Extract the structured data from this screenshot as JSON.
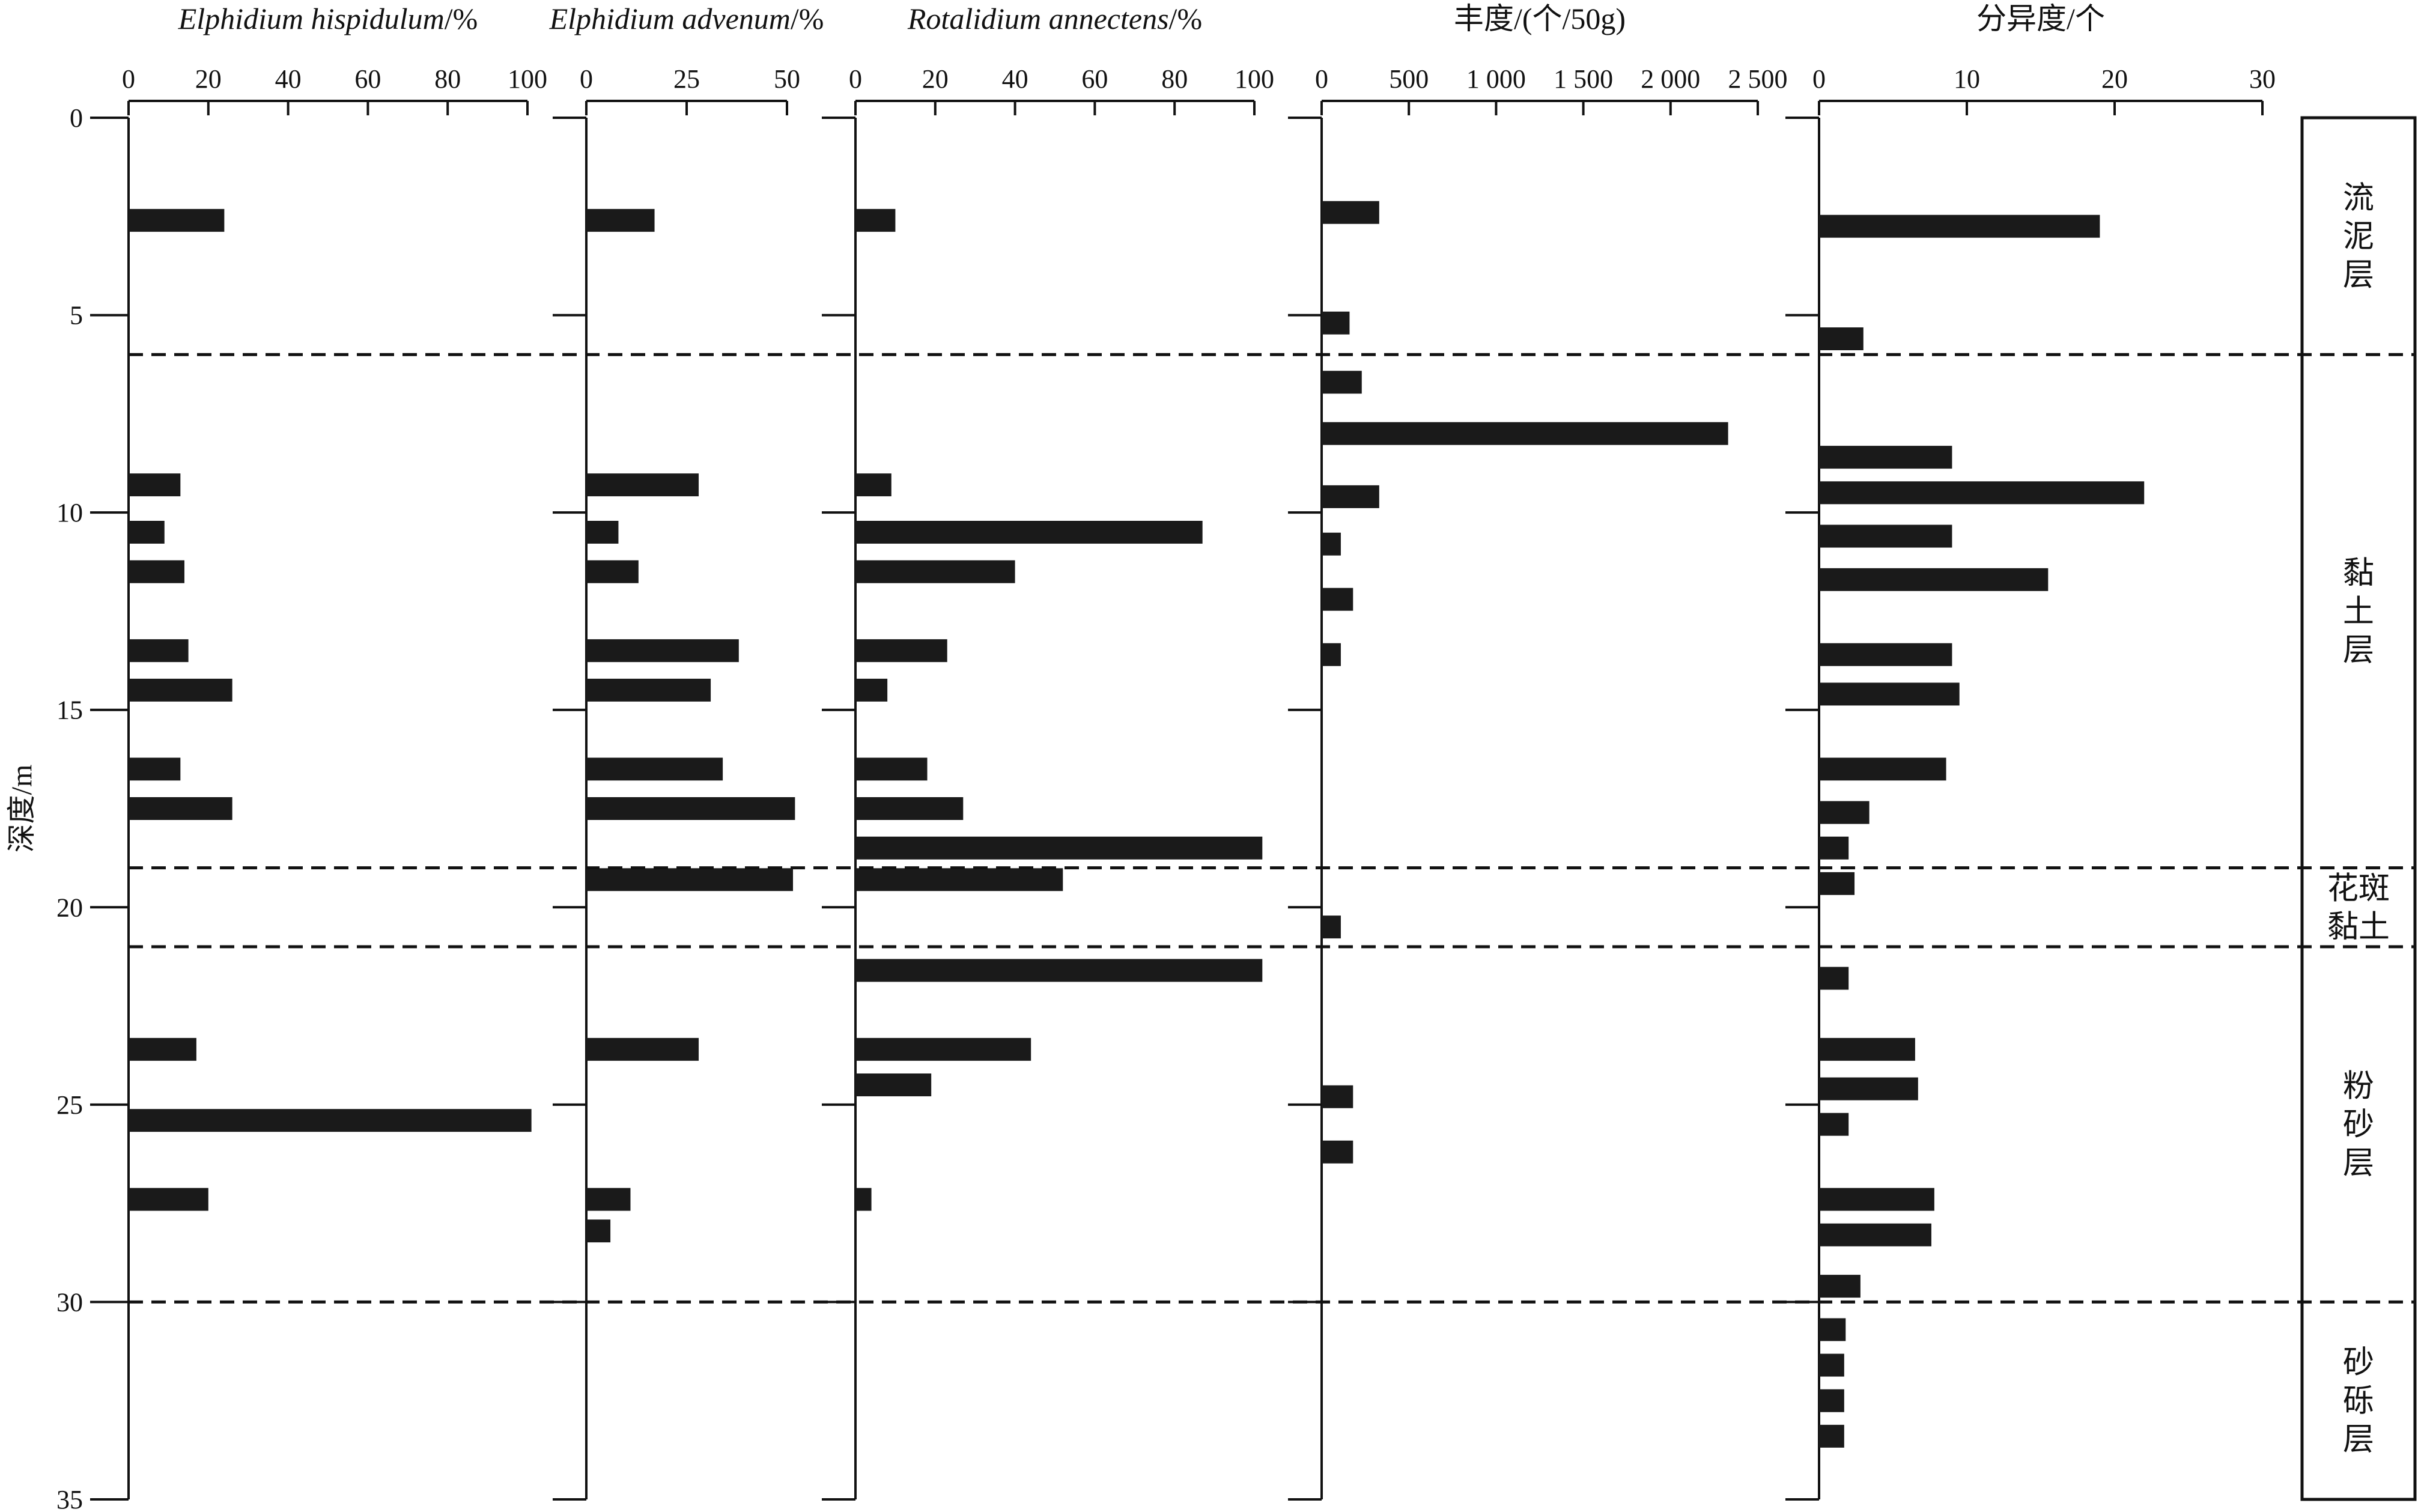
{
  "colors": {
    "bar": "#1a1a1a",
    "axis": "#111111",
    "background": "#ffffff"
  },
  "chart_data": {
    "type": "bar",
    "orientation": "horizontal",
    "ylabel": "深度/m",
    "ylim": [
      0,
      35
    ],
    "yticks": [
      0,
      5,
      10,
      15,
      20,
      25,
      30,
      35
    ],
    "grid": false,
    "boundaries": [
      6,
      19,
      21,
      30
    ],
    "layers": [
      {
        "label": "流泥层",
        "top": 0,
        "bottom": 6
      },
      {
        "label": "黏土层",
        "top": 6,
        "bottom": 19
      },
      {
        "label": "花斑黏土",
        "top": 19,
        "bottom": 21
      },
      {
        "label": "粉砂层",
        "top": 21,
        "bottom": 30
      },
      {
        "label": "砂砾层",
        "top": 30,
        "bottom": 35
      }
    ],
    "series": [
      {
        "name": "Elphidium hispidulum/%",
        "italic_part": "Elphidium hispidulum",
        "suffix": "/%",
        "xlim": [
          0,
          100
        ],
        "xticks": [
          0,
          20,
          40,
          60,
          80,
          100
        ],
        "xtick_labels": [
          "0",
          "20",
          "40",
          "60",
          "80",
          "100"
        ],
        "points": [
          {
            "depth": 2.6,
            "value": 24
          },
          {
            "depth": 9.3,
            "value": 13
          },
          {
            "depth": 10.5,
            "value": 9
          },
          {
            "depth": 11.5,
            "value": 14
          },
          {
            "depth": 13.5,
            "value": 15
          },
          {
            "depth": 14.5,
            "value": 26
          },
          {
            "depth": 16.5,
            "value": 13
          },
          {
            "depth": 17.5,
            "value": 26
          },
          {
            "depth": 23.6,
            "value": 17
          },
          {
            "depth": 25.4,
            "value": 101
          },
          {
            "depth": 27.4,
            "value": 20
          }
        ]
      },
      {
        "name": "Elphidium advenum/%",
        "italic_part": "Elphidium advenum",
        "suffix": "/%",
        "xlim": [
          0,
          50
        ],
        "xticks": [
          0,
          25,
          50
        ],
        "xtick_labels": [
          "0",
          "25",
          "50"
        ],
        "points": [
          {
            "depth": 2.6,
            "value": 17
          },
          {
            "depth": 9.3,
            "value": 28
          },
          {
            "depth": 10.5,
            "value": 8
          },
          {
            "depth": 11.5,
            "value": 13
          },
          {
            "depth": 13.5,
            "value": 38
          },
          {
            "depth": 14.5,
            "value": 31
          },
          {
            "depth": 16.5,
            "value": 34
          },
          {
            "depth": 17.5,
            "value": 52
          },
          {
            "depth": 19.3,
            "value": 51.5
          },
          {
            "depth": 23.6,
            "value": 28
          },
          {
            "depth": 27.4,
            "value": 11
          },
          {
            "depth": 28.2,
            "value": 6
          }
        ]
      },
      {
        "name": "Rotalidium annectens/%",
        "italic_part": "Rotalidium annectens",
        "suffix": "/%",
        "xlim": [
          0,
          100
        ],
        "xticks": [
          0,
          20,
          40,
          60,
          80,
          100
        ],
        "xtick_labels": [
          "0",
          "20",
          "40",
          "60",
          "80",
          "100"
        ],
        "points": [
          {
            "depth": 2.6,
            "value": 10
          },
          {
            "depth": 9.3,
            "value": 9
          },
          {
            "depth": 10.5,
            "value": 87
          },
          {
            "depth": 11.5,
            "value": 40
          },
          {
            "depth": 13.5,
            "value": 23
          },
          {
            "depth": 14.5,
            "value": 8
          },
          {
            "depth": 16.5,
            "value": 18
          },
          {
            "depth": 17.5,
            "value": 27
          },
          {
            "depth": 18.5,
            "value": 102
          },
          {
            "depth": 19.3,
            "value": 52
          },
          {
            "depth": 21.6,
            "value": 102
          },
          {
            "depth": 23.6,
            "value": 44
          },
          {
            "depth": 24.5,
            "value": 19
          },
          {
            "depth": 27.4,
            "value": 4
          }
        ]
      },
      {
        "name": "丰度/(个/50g)",
        "italic_part": "",
        "suffix": "丰度/(个/50g)",
        "xlim": [
          0,
          2500
        ],
        "xticks": [
          0,
          500,
          1000,
          1500,
          2000,
          2500
        ],
        "xtick_labels": [
          "0",
          "500",
          "1 000",
          "1 500",
          "2 000",
          "2 500"
        ],
        "points": [
          {
            "depth": 2.4,
            "value": 330
          },
          {
            "depth": 5.2,
            "value": 160
          },
          {
            "depth": 6.7,
            "value": 230
          },
          {
            "depth": 8.0,
            "value": 2330
          },
          {
            "depth": 9.6,
            "value": 330
          },
          {
            "depth": 10.8,
            "value": 110
          },
          {
            "depth": 12.2,
            "value": 180
          },
          {
            "depth": 13.6,
            "value": 110
          },
          {
            "depth": 20.5,
            "value": 110
          },
          {
            "depth": 24.8,
            "value": 180
          },
          {
            "depth": 26.2,
            "value": 180
          }
        ]
      },
      {
        "name": "分异度/个",
        "italic_part": "",
        "suffix": "分异度/个",
        "xlim": [
          0,
          30
        ],
        "xticks": [
          0,
          10,
          20,
          30
        ],
        "xtick_labels": [
          "0",
          "10",
          "20",
          "30"
        ],
        "points": [
          {
            "depth": 2.75,
            "value": 19
          },
          {
            "depth": 5.6,
            "value": 3
          },
          {
            "depth": 8.6,
            "value": 9
          },
          {
            "depth": 9.5,
            "value": 22
          },
          {
            "depth": 10.6,
            "value": 9
          },
          {
            "depth": 11.7,
            "value": 15.5
          },
          {
            "depth": 13.6,
            "value": 9
          },
          {
            "depth": 14.6,
            "value": 9.5
          },
          {
            "depth": 16.5,
            "value": 8.6
          },
          {
            "depth": 17.6,
            "value": 3.4
          },
          {
            "depth": 18.5,
            "value": 2
          },
          {
            "depth": 19.4,
            "value": 2.4
          },
          {
            "depth": 21.8,
            "value": 2
          },
          {
            "depth": 23.6,
            "value": 6.5
          },
          {
            "depth": 24.6,
            "value": 6.7
          },
          {
            "depth": 25.5,
            "value": 2
          },
          {
            "depth": 27.4,
            "value": 7.8
          },
          {
            "depth": 28.3,
            "value": 7.6
          },
          {
            "depth": 29.6,
            "value": 2.8
          },
          {
            "depth": 30.7,
            "value": 1.8
          },
          {
            "depth": 31.6,
            "value": 1.7
          },
          {
            "depth": 32.5,
            "value": 1.7
          },
          {
            "depth": 33.4,
            "value": 1.7
          }
        ]
      }
    ]
  }
}
